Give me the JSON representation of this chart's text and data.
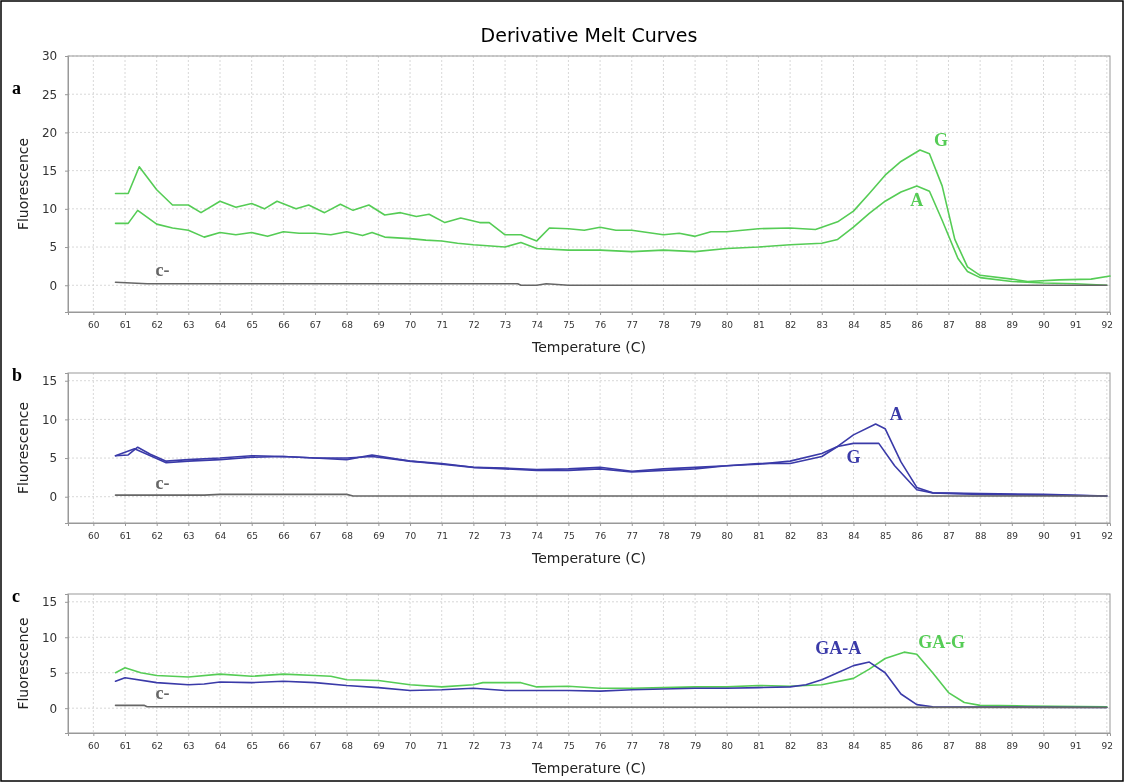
{
  "chart_data": [
    {
      "type": "line",
      "title": "Derivative Melt Curves",
      "xlabel": "Temperature (C)",
      "ylabel": "Fluorescence",
      "xlim": [
        59.2,
        92.1
      ],
      "ylim": [
        -3.5,
        30
      ],
      "xticks": [
        60,
        61,
        62,
        63,
        64,
        65,
        66,
        67,
        68,
        69,
        70,
        71,
        72,
        73,
        74,
        75,
        76,
        77,
        78,
        79,
        80,
        81,
        82,
        83,
        84,
        85,
        86,
        87,
        88,
        89,
        90,
        91,
        92
      ],
      "yticks": [
        0,
        5,
        10,
        15,
        20,
        25,
        30
      ],
      "grid": true,
      "legend": false,
      "marker": "none",
      "line_style": "solid",
      "annotations": [
        "a"
      ],
      "series": [
        {
          "name": "G",
          "color": "#55cc55",
          "x": [
            60.7,
            61.1,
            61.45,
            62,
            62.5,
            63,
            63.4,
            64,
            64.5,
            65,
            65.4,
            65.8,
            66.4,
            66.8,
            67.3,
            67.8,
            68.2,
            68.7,
            69.2,
            69.7,
            70.2,
            70.6,
            71.1,
            71.6,
            72.2,
            72.5,
            73,
            73.5,
            74,
            74.4,
            75,
            75.5,
            76,
            76.5,
            77,
            78,
            78.5,
            79,
            79.5,
            80,
            80.5,
            81,
            82,
            82.8,
            83.5,
            84,
            84.5,
            85,
            85.5,
            86.1,
            86.4,
            86.8,
            87.2,
            87.6,
            88,
            89,
            89.5,
            90.5,
            91.5,
            92.1
          ],
          "values": [
            12,
            12,
            15.5,
            12.5,
            10.5,
            10.5,
            9.5,
            11,
            10.2,
            10.7,
            10,
            11,
            10,
            10.5,
            9.5,
            10.6,
            9.8,
            10.5,
            9.2,
            9.5,
            9,
            9.3,
            8.2,
            8.8,
            8.2,
            8.2,
            6.6,
            6.6,
            5.8,
            7.5,
            7.4,
            7.2,
            7.6,
            7.2,
            7.2,
            6.6,
            6.8,
            6.4,
            7,
            7,
            7.2,
            7.4,
            7.5,
            7.3,
            8.3,
            9.7,
            12,
            14.4,
            16.2,
            17.7,
            17.2,
            13,
            6,
            2.4,
            1.3,
            0.8,
            0.5,
            0.7,
            0.8,
            1.2
          ]
        },
        {
          "name": "A",
          "color": "#55cc55",
          "x": [
            60.7,
            61.1,
            61.4,
            62,
            62.5,
            63,
            63.5,
            64,
            64.5,
            65,
            65.5,
            66,
            66.5,
            67,
            67.5,
            68,
            68.5,
            68.8,
            69.2,
            70,
            70.5,
            71,
            71.5,
            72,
            73,
            73.5,
            74,
            75,
            76,
            77,
            78,
            79,
            80,
            81,
            82,
            83,
            83.5,
            84,
            84.5,
            85,
            85.5,
            86,
            86.4,
            86.8,
            87.3,
            87.6,
            88,
            89,
            90,
            91,
            92
          ],
          "values": [
            8.1,
            8.1,
            9.8,
            8,
            7.5,
            7.2,
            6.3,
            6.9,
            6.6,
            6.9,
            6.4,
            7,
            6.8,
            6.8,
            6.6,
            7,
            6.5,
            6.9,
            6.3,
            6.1,
            5.9,
            5.8,
            5.5,
            5.3,
            5,
            5.6,
            4.8,
            4.6,
            4.6,
            4.4,
            4.6,
            4.4,
            4.8,
            5,
            5.3,
            5.5,
            6,
            7.6,
            9.4,
            11,
            12.2,
            13,
            12.3,
            8.5,
            3.5,
            1.8,
            1,
            0.5,
            0.3,
            0.2,
            0
          ]
        },
        {
          "name": "c-",
          "color": "#666666",
          "x": [
            60.7,
            61.7,
            73.4,
            73.5,
            74,
            74.3,
            75,
            92
          ],
          "values": [
            0.4,
            0.2,
            0.2,
            0,
            0,
            0.2,
            0,
            0
          ]
        }
      ]
    },
    {
      "type": "line",
      "xlabel": "Temperature (C)",
      "ylabel": "Fluorescence",
      "xlim": [
        59.2,
        92.1
      ],
      "ylim": [
        -3.4,
        16
      ],
      "xticks": [
        60,
        61,
        62,
        63,
        64,
        65,
        66,
        67,
        68,
        69,
        70,
        71,
        72,
        73,
        74,
        75,
        76,
        77,
        78,
        79,
        80,
        81,
        82,
        83,
        84,
        85,
        86,
        87,
        88,
        89,
        90,
        91,
        92
      ],
      "yticks": [
        0,
        5,
        10,
        15
      ],
      "grid": true,
      "legend": false,
      "marker": "none",
      "line_style": "solid",
      "annotations": [
        "b"
      ],
      "series": [
        {
          "name": "A",
          "color": "#3a3aa8",
          "x": [
            60.7,
            61.1,
            61.4,
            61.8,
            62.3,
            63,
            64,
            65,
            66,
            67,
            68,
            68.8,
            70,
            71,
            72,
            73,
            74,
            75,
            76,
            77,
            78,
            79,
            80,
            81,
            82,
            83,
            83.5,
            84,
            84.7,
            85,
            85.5,
            86,
            86.5,
            88,
            90,
            92
          ],
          "values": [
            5.3,
            5.4,
            6.4,
            5.5,
            4.6,
            4.8,
            5,
            5.3,
            5.2,
            5,
            5,
            5.2,
            4.6,
            4.3,
            3.8,
            3.6,
            3.4,
            3.4,
            3.6,
            3.2,
            3.4,
            3.6,
            4,
            4.2,
            4.6,
            5.6,
            6.5,
            8,
            9.4,
            8.8,
            4.5,
            1.2,
            0.5,
            0.4,
            0.3,
            0.1
          ]
        },
        {
          "name": "G",
          "color": "#3a3aa8",
          "x": [
            60.7,
            61.3,
            61.8,
            62.3,
            63,
            64,
            65,
            66,
            67,
            68,
            68.8,
            70,
            71,
            72,
            73,
            74,
            75,
            76,
            77,
            78,
            79,
            80,
            81,
            82,
            83,
            83.5,
            84,
            84.8,
            85.3,
            86,
            86.5,
            88,
            90,
            92
          ],
          "values": [
            5.3,
            6.2,
            5.3,
            4.4,
            4.6,
            4.8,
            5.1,
            5.2,
            5,
            4.8,
            5.4,
            4.6,
            4.2,
            3.8,
            3.7,
            3.5,
            3.6,
            3.8,
            3.3,
            3.6,
            3.8,
            4,
            4.3,
            4.3,
            5.2,
            6.5,
            6.9,
            6.9,
            4,
            0.9,
            0.5,
            0.3,
            0.2,
            0.1
          ]
        },
        {
          "name": "c-",
          "color": "#666666",
          "x": [
            60.7,
            63.5,
            64,
            68,
            68.2,
            92
          ],
          "values": [
            0.2,
            0.2,
            0.3,
            0.3,
            0.1,
            0.1
          ]
        }
      ]
    },
    {
      "type": "line",
      "xlabel": "Temperature (C)",
      "ylabel": "Fluorescence",
      "xlim": [
        59.2,
        92.1
      ],
      "ylim": [
        -3.5,
        16.1
      ],
      "xticks": [
        60,
        61,
        62,
        63,
        64,
        65,
        66,
        67,
        68,
        69,
        70,
        71,
        72,
        73,
        74,
        75,
        76,
        77,
        78,
        79,
        80,
        81,
        82,
        83,
        84,
        85,
        86,
        87,
        88,
        89,
        90,
        91,
        92
      ],
      "yticks": [
        0,
        5,
        10,
        15
      ],
      "grid": true,
      "legend": false,
      "marker": "none",
      "line_style": "solid",
      "annotations": [
        "c"
      ],
      "series": [
        {
          "name": "GA-G",
          "color": "#55cc55",
          "x": [
            60.7,
            61,
            61.5,
            62,
            63,
            64,
            65,
            66,
            67,
            67.5,
            68,
            69,
            70,
            71,
            72,
            72.3,
            73.5,
            74,
            75,
            76,
            77,
            78,
            79,
            80,
            81,
            82,
            83,
            84,
            84.5,
            85,
            85.6,
            86,
            86.5,
            87,
            87.5,
            88,
            89.5,
            92
          ],
          "values": [
            5,
            5.7,
            5,
            4.6,
            4.4,
            4.8,
            4.5,
            4.8,
            4.6,
            4.5,
            4,
            3.9,
            3.3,
            3,
            3.3,
            3.6,
            3.6,
            3,
            3.1,
            2.8,
            2.8,
            2.9,
            3,
            3,
            3.2,
            3.1,
            3.3,
            4.2,
            5.5,
            7,
            7.9,
            7.6,
            5,
            2.2,
            0.8,
            0.4,
            0.3,
            0.2
          ]
        },
        {
          "name": "GA-A",
          "color": "#3a3aa8",
          "x": [
            60.7,
            61,
            62,
            63,
            63.5,
            64,
            65,
            66,
            67,
            68,
            69,
            70,
            71,
            72,
            73,
            74,
            75,
            76,
            77,
            78,
            79,
            80,
            81,
            82,
            82.5,
            83,
            83.5,
            84,
            84.5,
            85,
            85.5,
            86,
            86.5,
            92
          ],
          "values": [
            3.8,
            4.3,
            3.6,
            3.3,
            3.4,
            3.7,
            3.6,
            3.8,
            3.6,
            3.2,
            2.9,
            2.5,
            2.6,
            2.8,
            2.5,
            2.5,
            2.5,
            2.4,
            2.6,
            2.7,
            2.8,
            2.8,
            2.9,
            3,
            3.3,
            4,
            5,
            6,
            6.5,
            5,
            2,
            0.5,
            0.2,
            0.1
          ]
        },
        {
          "name": "c-",
          "color": "#666666",
          "x": [
            60.7,
            61.6,
            61.7,
            92
          ],
          "values": [
            0.4,
            0.4,
            0.2,
            0.1
          ]
        }
      ]
    }
  ]
}
